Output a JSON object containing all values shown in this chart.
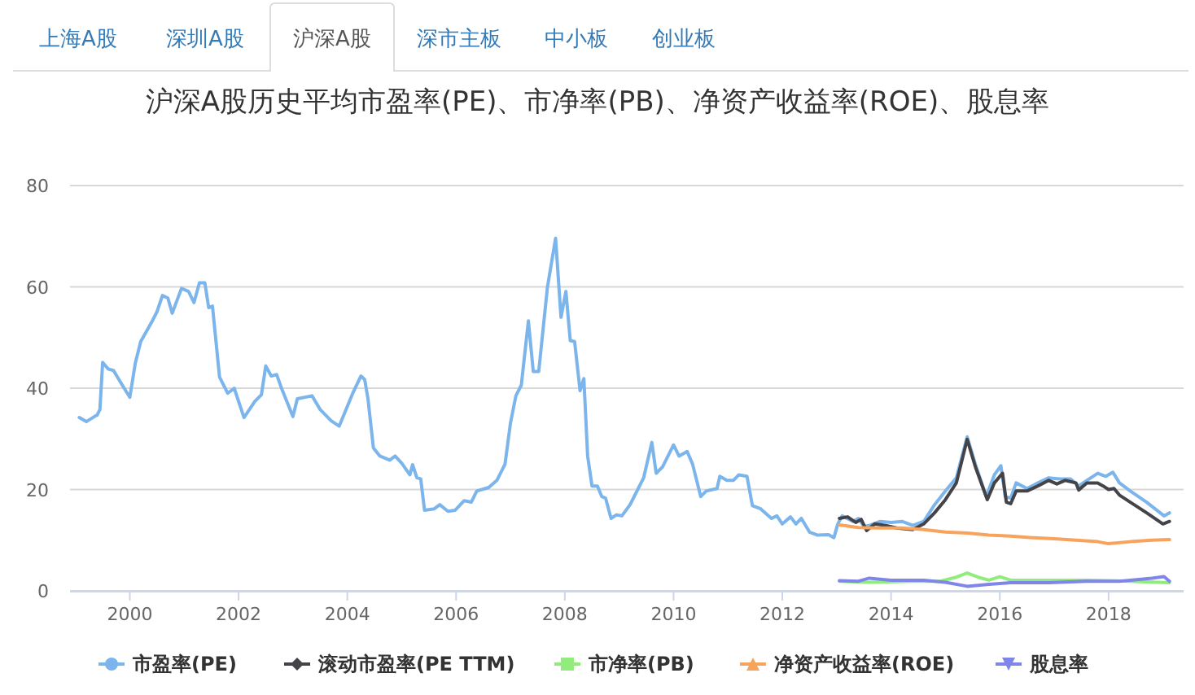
{
  "chart_data": {
    "type": "line",
    "title": "沪深A股历史平均市盈率(PE)、市净率(PB)、净资产收益率(ROE)、股息率",
    "annotations": [
      "上海A股",
      "深圳A股",
      "沪深A股",
      "深市主板",
      "中小板",
      "创业板"
    ],
    "xlim": [
      1998.9,
      2019.38
    ],
    "xticks": [
      2000,
      2002,
      2004,
      2006,
      2008,
      2010,
      2012,
      2014,
      2016,
      2018
    ],
    "ylim": [
      0,
      80
    ],
    "yticks": [
      0,
      20,
      40,
      60,
      80
    ],
    "grid": "y",
    "legend": "bottom",
    "series": [
      {
        "name": "市盈率(PE)",
        "color": "#7cb5ec",
        "x": [
          1999.07,
          1999.2,
          1999.35,
          1999.4,
          1999.45,
          1999.5,
          1999.6,
          1999.7,
          1999.85,
          2000.0,
          2000.1,
          2000.2,
          2000.4,
          2000.5,
          2000.6,
          2000.7,
          2000.78,
          2000.95,
          2001.08,
          2001.18,
          2001.28,
          2001.38,
          2001.45,
          2001.52,
          2001.65,
          2001.8,
          2001.92,
          2002.1,
          2002.3,
          2002.42,
          2002.5,
          2002.6,
          2002.7,
          2002.8,
          2003.0,
          2003.08,
          2003.35,
          2003.5,
          2003.7,
          2003.85,
          2004.1,
          2004.25,
          2004.32,
          2004.38,
          2004.48,
          2004.6,
          2004.78,
          2004.88,
          2005.0,
          2005.15,
          2005.2,
          2005.28,
          2005.35,
          2005.42,
          2005.6,
          2005.7,
          2005.85,
          2005.98,
          2006.15,
          2006.28,
          2006.38,
          2006.6,
          2006.75,
          2006.9,
          2007.0,
          2007.1,
          2007.2,
          2007.33,
          2007.42,
          2007.52,
          2007.68,
          2007.83,
          2007.93,
          2008.02,
          2008.1,
          2008.18,
          2008.28,
          2008.35,
          2008.42,
          2008.5,
          2008.6,
          2008.68,
          2008.75,
          2008.85,
          2008.95,
          2009.05,
          2009.2,
          2009.35,
          2009.45,
          2009.6,
          2009.68,
          2009.8,
          2010.0,
          2010.1,
          2010.25,
          2010.35,
          2010.5,
          2010.6,
          2010.8,
          2010.85,
          2010.98,
          2011.1,
          2011.2,
          2011.35,
          2011.45,
          2011.6,
          2011.8,
          2011.9,
          2012.0,
          2012.15,
          2012.25,
          2012.35,
          2012.5,
          2012.65,
          2012.85,
          2012.95,
          2013.02,
          2013.1,
          2013.3,
          2013.4,
          2013.5,
          2013.6,
          2013.8,
          2014.0,
          2014.2,
          2014.4,
          2014.6,
          2014.8,
          2015.0,
          2015.2,
          2015.4,
          2015.55,
          2015.75,
          2015.9,
          2016.02,
          2016.1,
          2016.2,
          2016.3,
          2016.5,
          2016.7,
          2016.9,
          2017.1,
          2017.3,
          2017.45,
          2017.6,
          2017.8,
          2017.95,
          2018.08,
          2018.2,
          2018.4,
          2018.7,
          2019.02,
          2019.12
        ],
        "values": [
          34.2,
          33.4,
          34.4,
          34.7,
          35.8,
          45.1,
          43.8,
          43.5,
          40.8,
          38.2,
          44.9,
          49.2,
          53,
          55.1,
          58.3,
          57.8,
          54.8,
          59.7,
          59.1,
          56.9,
          60.8,
          60.8,
          55.9,
          56.2,
          42.2,
          39,
          40,
          34.2,
          37.4,
          38.7,
          44.4,
          42.4,
          42.7,
          39.7,
          34.4,
          37.9,
          38.5,
          35.8,
          33.6,
          32.5,
          39,
          42.4,
          41.7,
          37.9,
          28.2,
          26.6,
          25.8,
          26.6,
          25.2,
          22.9,
          24.9,
          22.3,
          22.1,
          15.9,
          16.2,
          17,
          15.7,
          15.9,
          17.8,
          17.5,
          19.7,
          20.4,
          21.8,
          25,
          33.1,
          38.5,
          40.6,
          53.3,
          43.3,
          43.3,
          59.9,
          69.6,
          54,
          59.1,
          49.4,
          49.2,
          39.5,
          41.9,
          26.6,
          20.7,
          20.7,
          18.6,
          18.3,
          14.3,
          15,
          14.8,
          17,
          20.2,
          22.3,
          29.3,
          23.2,
          24.5,
          28.8,
          26.6,
          27.5,
          25,
          18.6,
          19.7,
          20.2,
          22.6,
          21.8,
          21.8,
          22.9,
          22.6,
          16.8,
          16.2,
          14.3,
          14.8,
          13.2,
          14.6,
          13.2,
          14.3,
          11.6,
          11,
          11.1,
          10.5,
          13.2,
          14.8,
          13.7,
          14.3,
          12.7,
          12.9,
          13.7,
          13.5,
          13.7,
          12.9,
          13.7,
          17,
          19.7,
          22.3,
          30.4,
          25,
          18.6,
          22.9,
          24.7,
          18.6,
          18.3,
          21.3,
          20.2,
          21.3,
          22.3,
          22.1,
          22.1,
          20.7,
          21.8,
          23.2,
          22.6,
          23.4,
          21.3,
          19.7,
          17.5,
          14.8,
          15.4
        ]
      },
      {
        "name": "滚动市盈率(PE TTM)",
        "color": "#434348",
        "x": [
          2013.05,
          2013.2,
          2013.35,
          2013.45,
          2013.55,
          2013.7,
          2013.9,
          2014.1,
          2014.4,
          2014.6,
          2014.8,
          2015.0,
          2015.2,
          2015.4,
          2015.55,
          2015.77,
          2015.9,
          2016.05,
          2016.12,
          2016.2,
          2016.3,
          2016.5,
          2016.7,
          2016.9,
          2017.05,
          2017.2,
          2017.4,
          2017.45,
          2017.6,
          2017.8,
          2017.9,
          2018.0,
          2018.1,
          2018.2,
          2018.4,
          2018.7,
          2019.0,
          2019.12
        ],
        "values": [
          14.3,
          14.6,
          13.5,
          14.1,
          11.9,
          13.2,
          12.9,
          12.4,
          12.1,
          13.2,
          15.4,
          18,
          21.3,
          29.9,
          24.5,
          18,
          21.3,
          23.2,
          17.5,
          17.2,
          19.7,
          19.7,
          20.7,
          21.8,
          21.1,
          21.8,
          21.3,
          19.9,
          21.3,
          21.3,
          20.7,
          20,
          20.2,
          18.9,
          17.5,
          15.4,
          13.2,
          13.7
        ]
      },
      {
        "name": "市净率(PB)",
        "color": "#90ed7d",
        "x": [
          2013.05,
          2013.6,
          2014.4,
          2014.9,
          2015.2,
          2015.4,
          2015.6,
          2015.8,
          2016.0,
          2016.2,
          2016.9,
          2017.6,
          2018.0,
          2018.4,
          2018.9,
          2019.12
        ],
        "values": [
          1.9,
          1.7,
          1.9,
          1.9,
          2.7,
          3.5,
          2.7,
          2.1,
          2.8,
          2.1,
          2.1,
          2.1,
          2,
          1.9,
          1.7,
          1.6
        ]
      },
      {
        "name": "净资产收益率(ROE)",
        "color": "#f7a35c",
        "x": [
          2013.05,
          2013.4,
          2013.8,
          2014.2,
          2014.6,
          2015.0,
          2015.4,
          2015.8,
          2016.2,
          2016.6,
          2017.0,
          2017.4,
          2017.8,
          2018.0,
          2018.4,
          2018.8,
          2019.12
        ],
        "values": [
          13,
          12.5,
          12.4,
          12.4,
          12.1,
          11.6,
          11.4,
          11,
          10.8,
          10.5,
          10.3,
          10,
          9.7,
          9.3,
          9.7,
          10,
          10.1
        ]
      },
      {
        "name": "股息率",
        "color": "#8085e9",
        "x": [
          2013.05,
          2013.4,
          2013.6,
          2014.0,
          2014.6,
          2015.0,
          2015.4,
          2015.8,
          2016.2,
          2016.9,
          2017.6,
          2018.2,
          2018.8,
          2019.02,
          2019.12
        ],
        "values": [
          2,
          1.9,
          2.5,
          2.1,
          2.1,
          1.7,
          0.9,
          1.3,
          1.6,
          1.6,
          1.9,
          1.9,
          2.5,
          2.8,
          1.9
        ]
      }
    ]
  }
}
